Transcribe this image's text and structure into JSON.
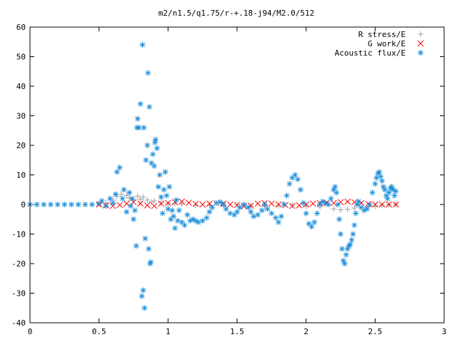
{
  "chart_data": {
    "type": "scatter",
    "title": "m2/n1.5/q1.75/r-+.18-j94/M2.0/512",
    "xlabel": "",
    "ylabel": "",
    "xlim": [
      0,
      3
    ],
    "ylim": [
      -40,
      60
    ],
    "xticks": [
      "0",
      "0.5",
      "1",
      "1.5",
      "2",
      "2.5",
      "3"
    ],
    "yticks": [
      "-40",
      "-30",
      "-20",
      "-10",
      "0",
      "10",
      "20",
      "30",
      "40",
      "50",
      "60"
    ],
    "grid": false,
    "legend_position": "top-right",
    "series": [
      {
        "name": "R stress/E",
        "marker": "plus",
        "color": "#a0a0a0",
        "points": [
          [
            0.55,
            0.5
          ],
          [
            0.6,
            1.5
          ],
          [
            0.63,
            2.8
          ],
          [
            0.66,
            3.5
          ],
          [
            0.7,
            3.0
          ],
          [
            0.72,
            2.2
          ],
          [
            0.75,
            1.5
          ],
          [
            0.78,
            2.8
          ],
          [
            0.8,
            1.8
          ],
          [
            0.82,
            2.5
          ],
          [
            0.85,
            1.5
          ],
          [
            0.88,
            0.8
          ],
          [
            0.9,
            1.2
          ],
          [
            0.95,
            0.6
          ],
          [
            1.0,
            0.3
          ],
          [
            1.05,
            0.2
          ],
          [
            1.1,
            0.1
          ],
          [
            1.2,
            -0.2
          ],
          [
            1.3,
            -0.3
          ],
          [
            1.4,
            -0.2
          ],
          [
            1.5,
            0.0
          ],
          [
            1.6,
            -0.5
          ],
          [
            1.7,
            -0.6
          ],
          [
            1.8,
            -0.4
          ],
          [
            1.9,
            -0.2
          ],
          [
            2.0,
            -0.5
          ],
          [
            2.1,
            -0.8
          ],
          [
            2.2,
            -1.5
          ],
          [
            2.25,
            -1.8
          ],
          [
            2.3,
            -1.6
          ],
          [
            2.35,
            -1.2
          ],
          [
            2.4,
            -1.0
          ],
          [
            2.45,
            -0.8
          ],
          [
            2.5,
            -0.6
          ],
          [
            2.55,
            -0.3
          ],
          [
            2.6,
            -0.1
          ],
          [
            2.65,
            0.0
          ]
        ]
      },
      {
        "name": "G work/E",
        "marker": "cross",
        "color": "#ff0000",
        "points": [
          [
            0.5,
            0.0
          ],
          [
            0.55,
            -0.3
          ],
          [
            0.6,
            -0.5
          ],
          [
            0.65,
            -0.2
          ],
          [
            0.7,
            0.3
          ],
          [
            0.75,
            0.8
          ],
          [
            0.8,
            0.3
          ],
          [
            0.85,
            -0.3
          ],
          [
            0.9,
            -0.5
          ],
          [
            0.95,
            0.3
          ],
          [
            1.0,
            0.5
          ],
          [
            1.05,
            0.8
          ],
          [
            1.1,
            1.0
          ],
          [
            1.15,
            0.6
          ],
          [
            1.2,
            0.2
          ],
          [
            1.25,
            0.0
          ],
          [
            1.3,
            0.3
          ],
          [
            1.35,
            0.5
          ],
          [
            1.4,
            0.3
          ],
          [
            1.45,
            0.0
          ],
          [
            1.5,
            -0.2
          ],
          [
            1.55,
            -0.6
          ],
          [
            1.6,
            -0.4
          ],
          [
            1.65,
            0.3
          ],
          [
            1.7,
            0.5
          ],
          [
            1.75,
            0.3
          ],
          [
            1.8,
            0.0
          ],
          [
            1.85,
            -0.2
          ],
          [
            1.9,
            -0.5
          ],
          [
            1.95,
            -0.3
          ],
          [
            2.0,
            0.0
          ],
          [
            2.05,
            0.3
          ],
          [
            2.1,
            0.5
          ],
          [
            2.15,
            0.6
          ],
          [
            2.2,
            0.5
          ],
          [
            2.25,
            0.8
          ],
          [
            2.3,
            1.0
          ],
          [
            2.35,
            0.8
          ],
          [
            2.4,
            0.5
          ],
          [
            2.45,
            0.2
          ],
          [
            2.5,
            0.0
          ],
          [
            2.55,
            0.0
          ],
          [
            2.6,
            0.0
          ],
          [
            2.65,
            0.0
          ]
        ]
      },
      {
        "name": "Acoustic flux/E",
        "marker": "star",
        "color": "#1e8fdc",
        "points": [
          [
            0.0,
            0.0
          ],
          [
            0.05,
            0.0
          ],
          [
            0.1,
            0.0
          ],
          [
            0.15,
            0.0
          ],
          [
            0.2,
            0.0
          ],
          [
            0.25,
            0.0
          ],
          [
            0.3,
            0.0
          ],
          [
            0.35,
            0.0
          ],
          [
            0.4,
            0.0
          ],
          [
            0.45,
            0.0
          ],
          [
            0.5,
            0.3
          ],
          [
            0.52,
            1.2
          ],
          [
            0.55,
            -0.5
          ],
          [
            0.58,
            2.0
          ],
          [
            0.6,
            0.5
          ],
          [
            0.62,
            3.5
          ],
          [
            0.63,
            11.0
          ],
          [
            0.65,
            12.5
          ],
          [
            0.67,
            2.0
          ],
          [
            0.68,
            5.0
          ],
          [
            0.7,
            -2.5
          ],
          [
            0.72,
            4.0
          ],
          [
            0.73,
            -0.5
          ],
          [
            0.74,
            2.0
          ],
          [
            0.75,
            -5.0
          ],
          [
            0.76,
            -2.0
          ],
          [
            0.77,
            -14.0
          ],
          [
            0.775,
            26.0
          ],
          [
            0.78,
            29.0
          ],
          [
            0.79,
            26.0
          ],
          [
            0.8,
            34.0
          ],
          [
            0.81,
            -31.0
          ],
          [
            0.815,
            54.0
          ],
          [
            0.82,
            -29.0
          ],
          [
            0.825,
            26.0
          ],
          [
            0.83,
            -35.0
          ],
          [
            0.835,
            -11.5
          ],
          [
            0.84,
            15.0
          ],
          [
            0.85,
            20.0
          ],
          [
            0.855,
            44.5
          ],
          [
            0.86,
            -15.0
          ],
          [
            0.865,
            33.0
          ],
          [
            0.87,
            -20.0
          ],
          [
            0.875,
            -19.5
          ],
          [
            0.88,
            14.0
          ],
          [
            0.89,
            17.0
          ],
          [
            0.9,
            13.0
          ],
          [
            0.905,
            21.0
          ],
          [
            0.91,
            22.0
          ],
          [
            0.92,
            19.0
          ],
          [
            0.93,
            6.0
          ],
          [
            0.94,
            10.0
          ],
          [
            0.95,
            2.5
          ],
          [
            0.96,
            -3.0
          ],
          [
            0.97,
            5.0
          ],
          [
            0.98,
            11.0
          ],
          [
            0.99,
            3.0
          ],
          [
            1.0,
            -1.5
          ],
          [
            1.01,
            6.0
          ],
          [
            1.02,
            -5.0
          ],
          [
            1.03,
            -2.0
          ],
          [
            1.04,
            -4.0
          ],
          [
            1.05,
            -8.0
          ],
          [
            1.06,
            1.5
          ],
          [
            1.07,
            -5.5
          ],
          [
            1.08,
            -2.0
          ],
          [
            1.1,
            -6.0
          ],
          [
            1.12,
            -7.0
          ],
          [
            1.14,
            -3.5
          ],
          [
            1.16,
            -5.5
          ],
          [
            1.18,
            -5.0
          ],
          [
            1.2,
            -5.5
          ],
          [
            1.22,
            -6.0
          ],
          [
            1.25,
            -5.5
          ],
          [
            1.28,
            -4.5
          ],
          [
            1.3,
            -2.5
          ],
          [
            1.32,
            -1.0
          ],
          [
            1.35,
            0.5
          ],
          [
            1.38,
            0.8
          ],
          [
            1.4,
            0.0
          ],
          [
            1.42,
            -1.5
          ],
          [
            1.45,
            -3.0
          ],
          [
            1.48,
            -3.5
          ],
          [
            1.5,
            -2.5
          ],
          [
            1.52,
            -1.0
          ],
          [
            1.55,
            0.0
          ],
          [
            1.58,
            -1.0
          ],
          [
            1.6,
            -2.5
          ],
          [
            1.62,
            -4.0
          ],
          [
            1.65,
            -3.5
          ],
          [
            1.68,
            -2.0
          ],
          [
            1.7,
            0.0
          ],
          [
            1.72,
            -1.5
          ],
          [
            1.75,
            -3.0
          ],
          [
            1.78,
            -4.5
          ],
          [
            1.8,
            -6.0
          ],
          [
            1.82,
            -4.0
          ],
          [
            1.84,
            0.0
          ],
          [
            1.86,
            3.0
          ],
          [
            1.88,
            7.0
          ],
          [
            1.9,
            9.0
          ],
          [
            1.92,
            10.0
          ],
          [
            1.94,
            8.5
          ],
          [
            1.96,
            5.0
          ],
          [
            1.98,
            0.5
          ],
          [
            2.0,
            -3.0
          ],
          [
            2.02,
            -6.5
          ],
          [
            2.04,
            -7.5
          ],
          [
            2.06,
            -6.0
          ],
          [
            2.08,
            -3.0
          ],
          [
            2.1,
            0.0
          ],
          [
            2.12,
            1.0
          ],
          [
            2.14,
            0.5
          ],
          [
            2.16,
            0.0
          ],
          [
            2.18,
            2.0
          ],
          [
            2.2,
            5.0
          ],
          [
            2.21,
            6.0
          ],
          [
            2.22,
            4.0
          ],
          [
            2.23,
            0.0
          ],
          [
            2.24,
            -5.0
          ],
          [
            2.25,
            -10.0
          ],
          [
            2.26,
            -15.0
          ],
          [
            2.27,
            -19.0
          ],
          [
            2.28,
            -20.0
          ],
          [
            2.29,
            -17.0
          ],
          [
            2.3,
            -15.0
          ],
          [
            2.31,
            -14.0
          ],
          [
            2.32,
            -13.5
          ],
          [
            2.33,
            -12.0
          ],
          [
            2.34,
            -10.0
          ],
          [
            2.35,
            -7.0
          ],
          [
            2.36,
            -3.0
          ],
          [
            2.37,
            0.0
          ],
          [
            2.38,
            1.0
          ],
          [
            2.4,
            -1.0
          ],
          [
            2.42,
            -2.0
          ],
          [
            2.44,
            -1.5
          ],
          [
            2.46,
            0.0
          ],
          [
            2.48,
            4.0
          ],
          [
            2.5,
            7.0
          ],
          [
            2.51,
            9.0
          ],
          [
            2.52,
            10.5
          ],
          [
            2.53,
            11.0
          ],
          [
            2.54,
            9.5
          ],
          [
            2.55,
            8.0
          ],
          [
            2.56,
            6.0
          ],
          [
            2.57,
            5.0
          ],
          [
            2.58,
            3.0
          ],
          [
            2.59,
            2.0
          ],
          [
            2.6,
            4.0
          ],
          [
            2.61,
            5.5
          ],
          [
            2.62,
            6.0
          ],
          [
            2.63,
            5.0
          ],
          [
            2.64,
            3.0
          ],
          [
            2.65,
            4.5
          ]
        ]
      }
    ]
  }
}
